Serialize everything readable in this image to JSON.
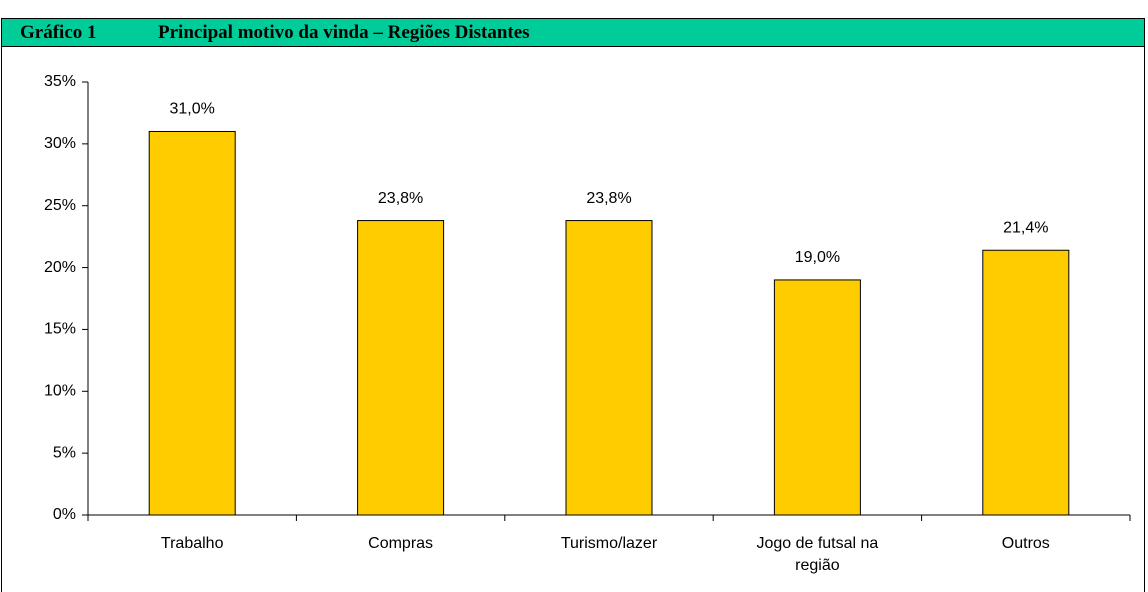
{
  "chart_data": {
    "type": "bar",
    "label": "Gráfico 1",
    "title": "Principal motivo da vinda – Regiões Distantes",
    "categories": [
      "Trabalho",
      "Compras",
      "Turismo/lazer",
      "Jogo de futsal na região",
      "Outros"
    ],
    "values": [
      31.0,
      23.8,
      23.8,
      19.0,
      21.4
    ],
    "value_labels": [
      "31,0%",
      "23,8%",
      "23,8%",
      "19,0%",
      "21,4%"
    ],
    "color": "#ffcc00",
    "ylim": [
      0,
      35
    ],
    "yticks": [
      {
        "value": 0,
        "label": "0%"
      },
      {
        "value": 5,
        "label": "5%"
      },
      {
        "value": 10,
        "label": "10%"
      },
      {
        "value": 15,
        "label": "15%"
      },
      {
        "value": 20,
        "label": "20%"
      },
      {
        "value": 25,
        "label": "25%"
      },
      {
        "value": 30,
        "label": "30%"
      },
      {
        "value": 35,
        "label": "35%"
      }
    ],
    "grid": false
  }
}
